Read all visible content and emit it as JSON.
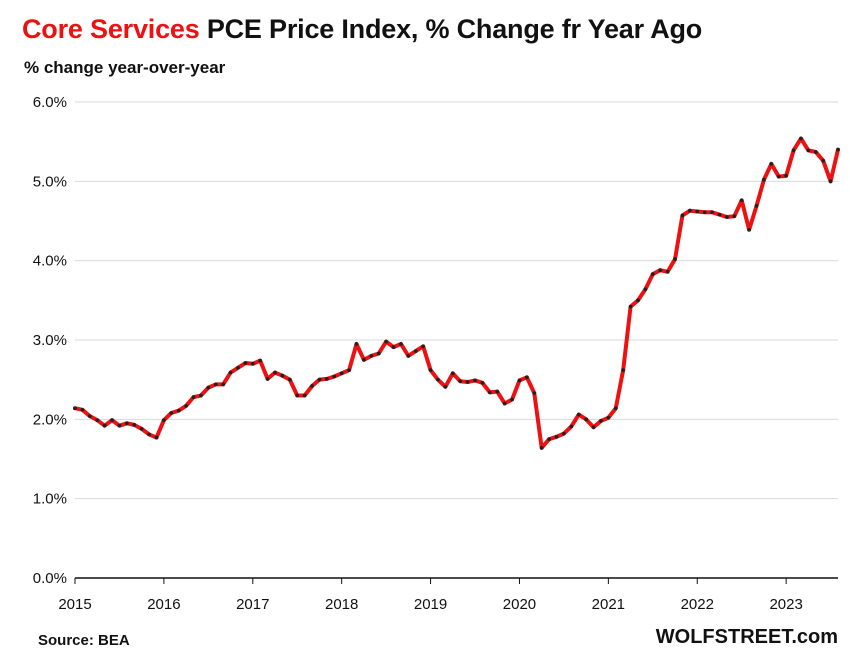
{
  "header": {
    "title_highlight": "Core Services",
    "title_rest": " PCE Price Index, % Change fr Year Ago",
    "subtitle": "% change year-over-year"
  },
  "footer": {
    "source": "Source: BEA",
    "brand": "WOLFSTREET.com"
  },
  "colors": {
    "line": "#ee1111",
    "marker": "#222222",
    "grid": "#d9d9d9",
    "axis": "#111111",
    "highlight": "#ee1111"
  },
  "chart_data": {
    "type": "line",
    "title": "Core Services PCE Price Index, % Change fr Year Ago",
    "ylabel": "% change year-over-year",
    "xlabel": "",
    "ylim": [
      0,
      6
    ],
    "xlim": [
      "2015-01",
      "2023-08"
    ],
    "y_ticks": [
      "0.0%",
      "1.0%",
      "2.0%",
      "3.0%",
      "4.0%",
      "5.0%",
      "6.0%"
    ],
    "x_ticks": [
      "2015",
      "2016",
      "2017",
      "2018",
      "2019",
      "2020",
      "2021",
      "2022",
      "2023"
    ],
    "grid": true,
    "legend": "none",
    "series": [
      {
        "start": "2015-01",
        "frequency": "monthly",
        "values": [
          2.14,
          2.12,
          2.04,
          1.99,
          1.92,
          1.99,
          1.92,
          1.95,
          1.93,
          1.88,
          1.81,
          1.77,
          1.99,
          2.08,
          2.11,
          2.17,
          2.28,
          2.3,
          2.4,
          2.44,
          2.44,
          2.59,
          2.65,
          2.71,
          2.7,
          2.74,
          2.51,
          2.59,
          2.55,
          2.5,
          2.3,
          2.3,
          2.42,
          2.5,
          2.51,
          2.54,
          2.58,
          2.62,
          2.95,
          2.75,
          2.8,
          2.83,
          2.98,
          2.91,
          2.95,
          2.8,
          2.86,
          2.92,
          2.62,
          2.5,
          2.41,
          2.58,
          2.48,
          2.47,
          2.49,
          2.46,
          2.34,
          2.35,
          2.2,
          2.25,
          2.49,
          2.53,
          2.33,
          1.64,
          1.75,
          1.78,
          1.82,
          1.91,
          2.06,
          2.0,
          1.9,
          1.98,
          2.02,
          2.14,
          2.62,
          3.42,
          3.5,
          3.64,
          3.83,
          3.88,
          3.86,
          4.02,
          4.57,
          4.63,
          4.62,
          4.61,
          4.61,
          4.58,
          4.55,
          4.56,
          4.76,
          4.39,
          4.69,
          5.02,
          5.22,
          5.06,
          5.07,
          5.39,
          5.54,
          5.39,
          5.37,
          5.26,
          5.0,
          5.4
        ]
      }
    ]
  }
}
